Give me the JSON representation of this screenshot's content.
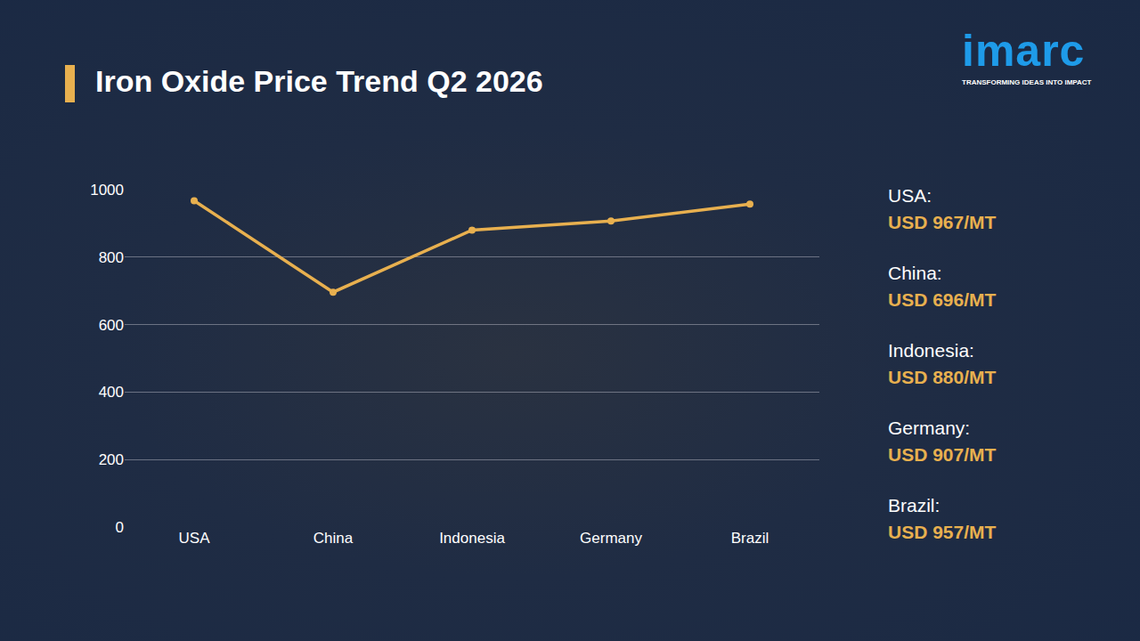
{
  "chart_data": {
    "type": "line",
    "title": "Iron Oxide Price Trend Q2 2026",
    "categories": [
      "USA",
      "China",
      "Indonesia",
      "Germany",
      "Brazil"
    ],
    "values": [
      967,
      696,
      880,
      907,
      957
    ],
    "color": "#e8b04f",
    "marker": "circle",
    "line_style": "solid",
    "ylim": [
      0,
      1000
    ],
    "yticks": [
      0,
      200,
      400,
      600,
      800,
      1000
    ],
    "grid": true,
    "side_labels": [
      {
        "label": "USA:",
        "text": "USD 967/MT"
      },
      {
        "label": "China:",
        "text": "USD 696/MT"
      },
      {
        "label": "Indonesia:",
        "text": "USD 880/MT"
      },
      {
        "label": "Germany:",
        "text": "USD 907/MT"
      },
      {
        "label": "Brazil:",
        "text": "USD 957/MT"
      }
    ],
    "logo": {
      "text": "imarc",
      "tagline": "TRANSFORMING IDEAS INTO IMPACT"
    }
  }
}
